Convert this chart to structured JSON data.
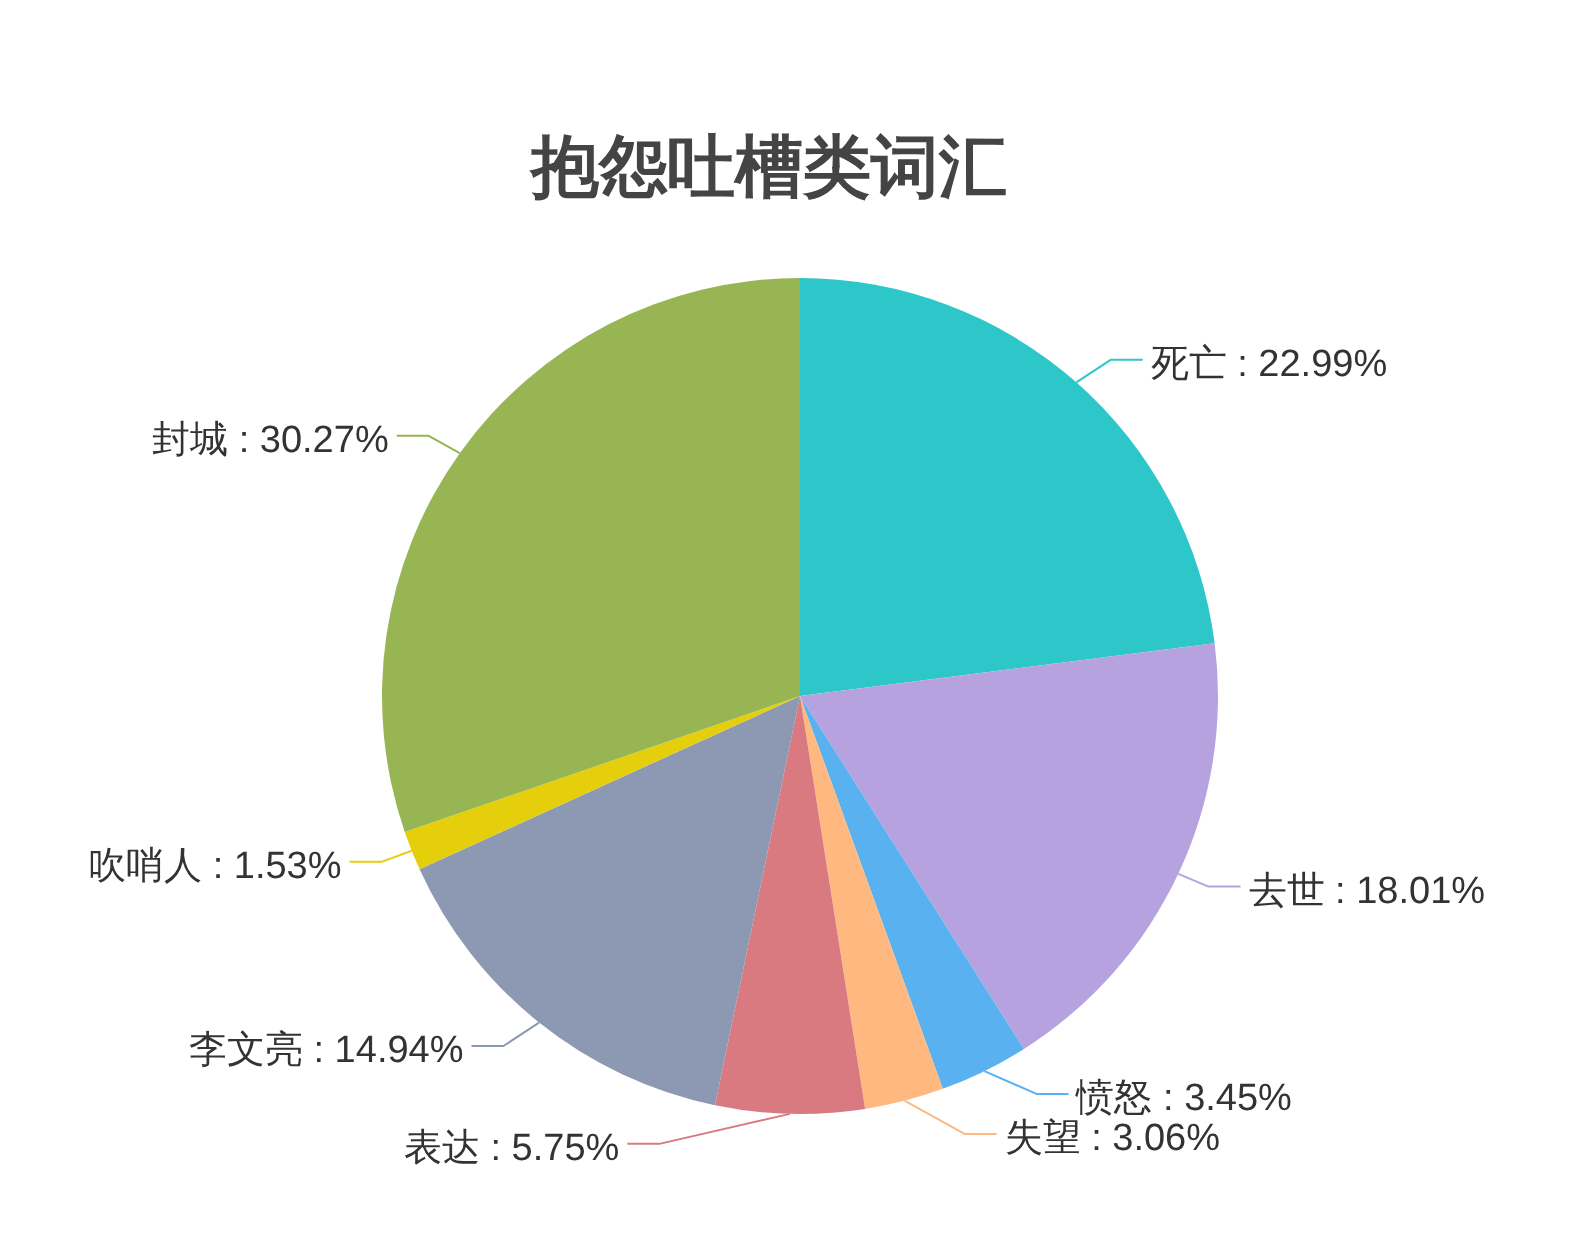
{
  "chart_data": {
    "type": "pie",
    "title": "抱怨吐槽类词汇",
    "categories": [
      "死亡",
      "去世",
      "愤怒",
      "失望",
      "表达",
      "李文亮",
      "吹哨人",
      "封城"
    ],
    "values": [
      22.99,
      18.01,
      3.45,
      3.06,
      5.75,
      14.94,
      1.53,
      30.27
    ],
    "colors": [
      "#2ec7c9",
      "#b6a2de",
      "#5ab1ef",
      "#ffb980",
      "#d87a80",
      "#8d98b3",
      "#e5cf0d",
      "#97b552"
    ],
    "value_labels": [
      "22.99%",
      "18.01%",
      "3.45%",
      "3.06%",
      "5.75%",
      "14.94%",
      "1.53%",
      "30.27%"
    ]
  }
}
